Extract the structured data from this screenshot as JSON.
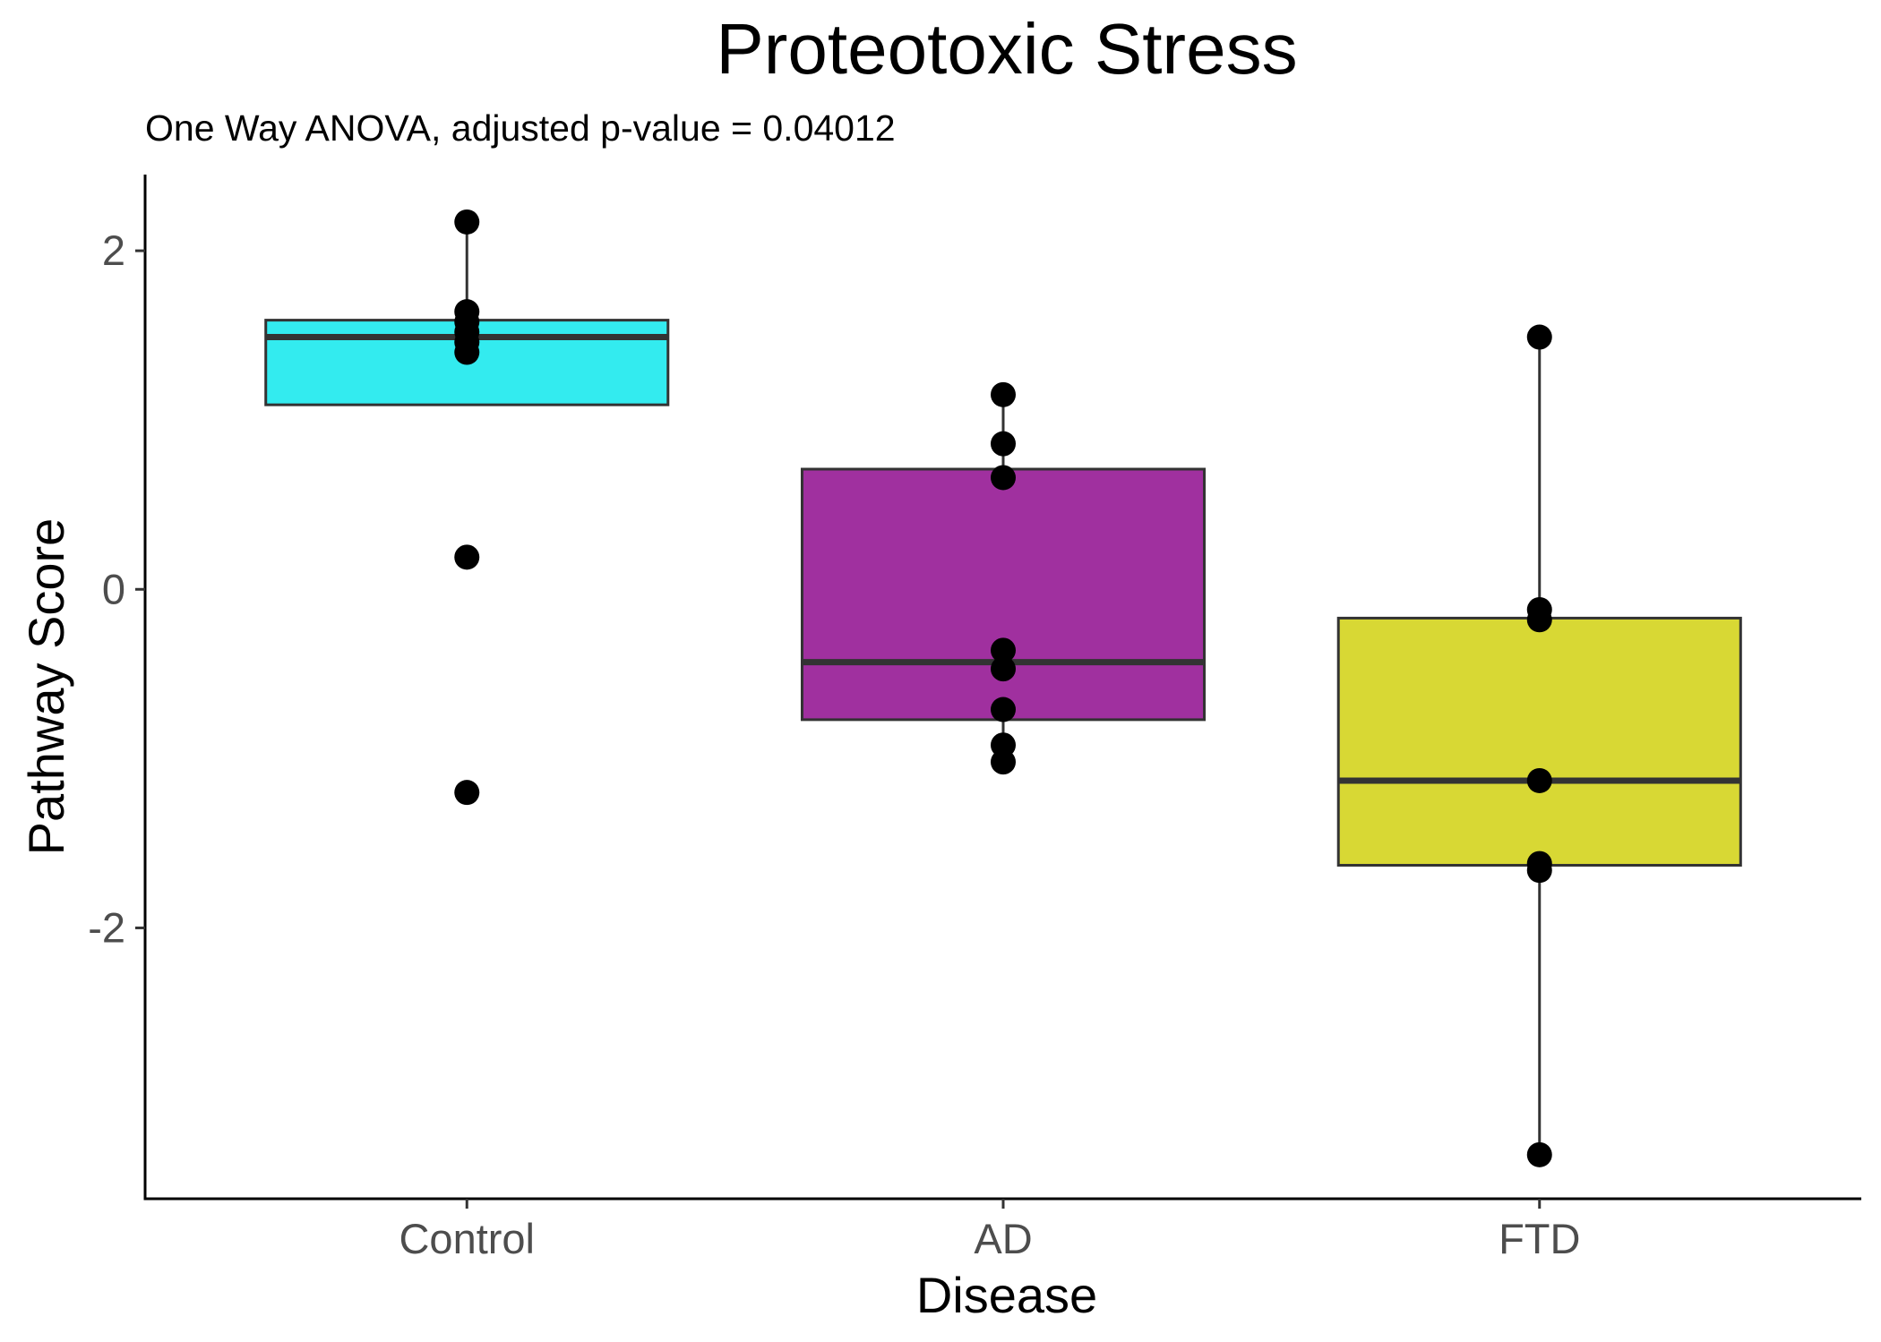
{
  "chart_data": {
    "type": "box",
    "title": "Proteotoxic Stress",
    "subtitle": "One Way ANOVA, adjusted p-value = 0.04012",
    "xlabel": "Disease",
    "ylabel": "Pathway Score",
    "ylim": [
      -3.6,
      2.45
    ],
    "yticks": [
      {
        "value": 2,
        "label": "2"
      },
      {
        "value": 0,
        "label": "0"
      },
      {
        "value": -2,
        "label": "-2"
      }
    ],
    "grid": false,
    "legend": "none",
    "categories": [
      "Control",
      "AD",
      "FTD"
    ],
    "boxes": [
      {
        "category": "Control",
        "color": "#33ebef",
        "whisker_low": 1.09,
        "q1": 1.09,
        "median": 1.49,
        "q3": 1.59,
        "whisker_high": 2.17
      },
      {
        "category": "AD",
        "color": "#a0309f",
        "whisker_low": -1.02,
        "q1": -0.77,
        "median": -0.43,
        "q3": 0.71,
        "whisker_high": 1.15
      },
      {
        "category": "FTD",
        "color": "#d8d834",
        "whisker_low": -3.34,
        "q1": -1.63,
        "median": -1.13,
        "q3": -0.17,
        "whisker_high": 1.49
      }
    ],
    "points": [
      {
        "category": "Control",
        "values": [
          2.17,
          1.64,
          1.58,
          1.52,
          1.46,
          1.4,
          0.19,
          -1.2
        ]
      },
      {
        "category": "AD",
        "values": [
          1.15,
          0.86,
          0.66,
          -0.36,
          -0.47,
          -0.71,
          -0.92,
          -1.02
        ]
      },
      {
        "category": "FTD",
        "values": [
          1.49,
          -0.12,
          -0.18,
          -1.13,
          -1.62,
          -1.66,
          -3.34
        ]
      }
    ]
  }
}
